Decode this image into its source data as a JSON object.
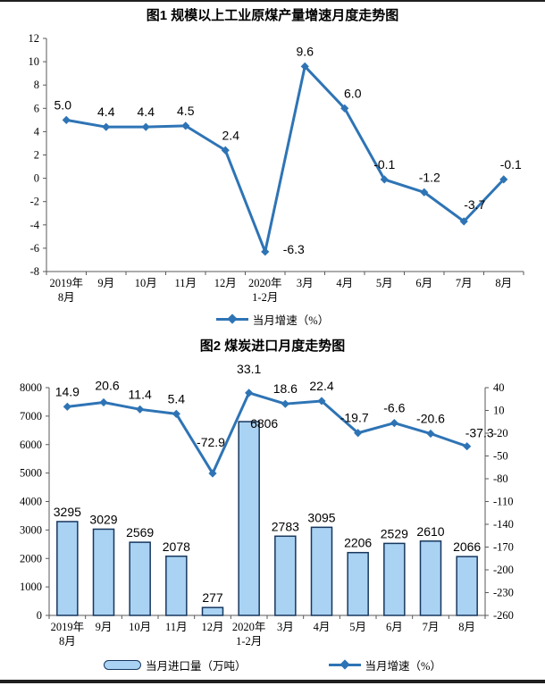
{
  "page": {
    "background": "#ffffff",
    "divider_color": "#1f1f1f"
  },
  "colors": {
    "line_blue": "#2E74B5",
    "bar_fill": "#A9D2F3",
    "bar_stroke": "#17375E",
    "axis_gray": "#595959",
    "text_black": "#000000"
  },
  "chart_data": [
    {
      "id": "chart1",
      "type": "line",
      "title": "图1  规模以上工业原煤产量增速月度走势图",
      "categories": [
        [
          "2019年",
          "8月"
        ],
        [
          "9月"
        ],
        [
          "10月"
        ],
        [
          "11月"
        ],
        [
          "12月"
        ],
        [
          "2020年",
          "1-2月"
        ],
        [
          "3月"
        ],
        [
          "4月"
        ],
        [
          "5月"
        ],
        [
          "6月"
        ],
        [
          "7月"
        ],
        [
          "8月"
        ]
      ],
      "left_axis": {
        "min": -8,
        "max": 12,
        "step": 2
      },
      "grid": false,
      "legend_position": "bottom",
      "series": [
        {
          "name": "当月增速（%）",
          "type": "line",
          "axis": "left",
          "color": "#2E74B5",
          "values": [
            5.0,
            4.4,
            4.4,
            4.5,
            2.4,
            -6.3,
            9.6,
            6.0,
            -0.1,
            -1.2,
            -3.7,
            -0.1
          ],
          "labels": [
            "5.0",
            "4.4",
            "4.4",
            "4.5",
            "2.4",
            "-6.3",
            "9.6",
            "6.0",
            "-0.1",
            "-1.2",
            "-3.7",
            "-0.1"
          ],
          "label_offsets": {
            "0": [
              -4,
              0
            ],
            "4": [
              6,
              0
            ],
            "5": [
              32,
              14
            ],
            "7": [
              9,
              0
            ],
            "9": [
              6,
              0
            ],
            "10": [
              12,
              -2
            ],
            "11": [
              8,
              0
            ]
          }
        }
      ]
    },
    {
      "id": "chart2",
      "type": "bar-line",
      "title": "图2  煤炭进口月度走势图",
      "categories": [
        [
          "2019年",
          "8月"
        ],
        [
          "9月"
        ],
        [
          "10月"
        ],
        [
          "11月"
        ],
        [
          "12月"
        ],
        [
          "2020年",
          "1-2月"
        ],
        [
          "3月"
        ],
        [
          "4月"
        ],
        [
          "5月"
        ],
        [
          "6月"
        ],
        [
          "7月"
        ],
        [
          "8月"
        ]
      ],
      "left_axis": {
        "min": 0,
        "max": 8000,
        "step": 1000
      },
      "right_axis": {
        "min": -260,
        "max": 40,
        "step": 30
      },
      "grid": false,
      "legend_position": "bottom",
      "series": [
        {
          "name": "当月进口量（万吨）",
          "type": "bar",
          "axis": "left",
          "fill": "#A9D2F3",
          "stroke": "#17375E",
          "values": [
            3295,
            3029,
            2569,
            2078,
            277,
            6806,
            2783,
            3095,
            2206,
            2529,
            2610,
            2066
          ],
          "labels": [
            "3295",
            "3029",
            "2569",
            "2078",
            "277",
            "6806",
            "2783",
            "3095",
            "2206",
            "2529",
            "2610",
            "2066"
          ],
          "label_offsets": {
            "5": [
              17,
              13
            ]
          }
        },
        {
          "name": "当月增速（%）",
          "type": "line",
          "axis": "right",
          "color": "#2E74B5",
          "values": [
            14.9,
            20.6,
            11.4,
            5.4,
            -72.9,
            33.1,
            18.6,
            22.4,
            -19.7,
            -6.6,
            -20.6,
            -37.3
          ],
          "labels": [
            "14.9",
            "20.6",
            "11.4",
            "5.4",
            "-72.9",
            "33.1",
            "18.6",
            "22.4",
            "-19.7",
            "-6.6",
            "-20.6",
            "-37.3"
          ],
          "label_offsets": {
            "1": [
              4,
              -2
            ],
            "4": [
              -2,
              -18
            ],
            "5": [
              0,
              -10
            ],
            "8": [
              -4,
              0
            ],
            "11": [
              14,
              2
            ]
          }
        }
      ]
    }
  ]
}
